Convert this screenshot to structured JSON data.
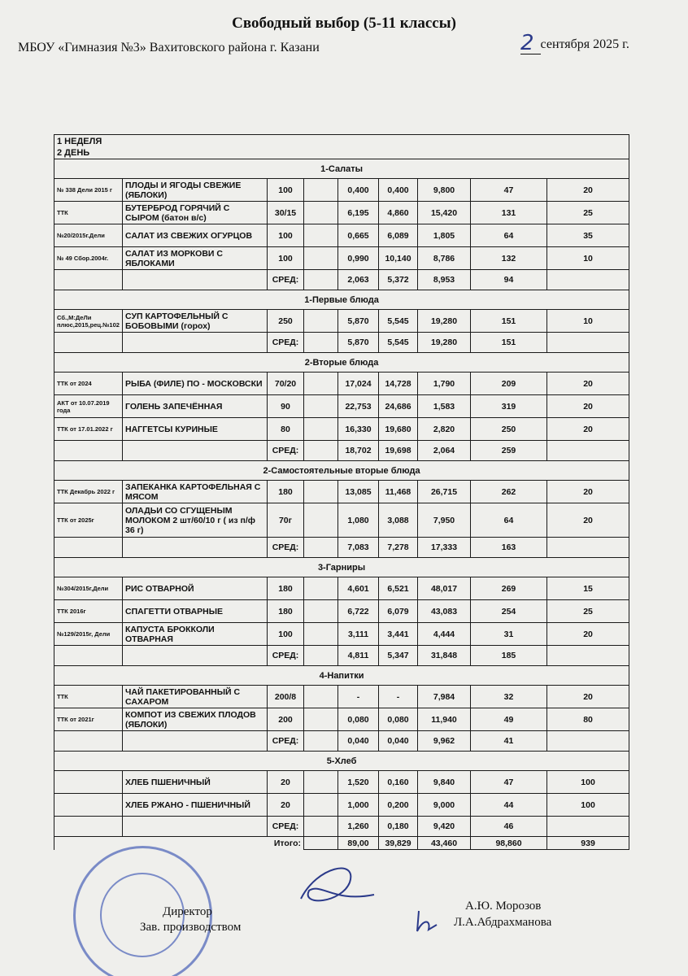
{
  "header": {
    "title": "Свободный выбор (5-11 классы)",
    "organization": "МБОУ «Гимназия №3» Вахитовского района г. Казани",
    "date_day": "2",
    "date_rest": "сентября 2025 г."
  },
  "table": {
    "week": "1 НЕДЕЛЯ",
    "day": "2 ДЕНЬ",
    "sections": [
      {
        "title": "1-Салаты",
        "rows": [
          [
            "№ 338 Дели 2015 г",
            "ПЛОДЫ И ЯГОДЫ СВЕЖИЕ (ЯБЛОКИ)",
            "100",
            "",
            "0,400",
            "0,400",
            "9,800",
            "47",
            "20"
          ],
          [
            "ТТК",
            "БУТЕРБРОД ГОРЯЧИЙ С СЫРОМ (батон в/с)",
            "30/15",
            "",
            "6,195",
            "4,860",
            "15,420",
            "131",
            "25"
          ],
          [
            "№20/2015г.Дели",
            "САЛАТ ИЗ СВЕЖИХ ОГУРЦОВ",
            "100",
            "",
            "0,665",
            "6,089",
            "1,805",
            "64",
            "35"
          ],
          [
            "№ 49 Сбор.2004г.",
            "САЛАТ ИЗ МОРКОВИ С ЯБЛОКАМИ",
            "100",
            "",
            "0,990",
            "10,140",
            "8,786",
            "132",
            "10"
          ]
        ],
        "avg": [
          "СРЕД:",
          "",
          "2,063",
          "5,372",
          "8,953",
          "94",
          ""
        ]
      },
      {
        "title": "1-Первые блюда",
        "rows": [
          [
            "Сб.,М:ДеЛи плюс,2015,рец.№102",
            "СУП КАРТОФЕЛЬНЫЙ С БОБОВЫМИ (горох)",
            "250",
            "",
            "5,870",
            "5,545",
            "19,280",
            "151",
            "10"
          ]
        ],
        "avg": [
          "СРЕД:",
          "",
          "5,870",
          "5,545",
          "19,280",
          "151",
          ""
        ]
      },
      {
        "title": "2-Вторые блюда",
        "rows": [
          [
            "ТТК от 2024",
            "РЫБА (ФИЛЕ) ПО - МОСКОВСКИ",
            "70/20",
            "",
            "17,024",
            "14,728",
            "1,790",
            "209",
            "20"
          ],
          [
            "АКТ от 10.07.2019 года",
            "ГОЛЕНЬ ЗАПЕЧЁННАЯ",
            "90",
            "",
            "22,753",
            "24,686",
            "1,583",
            "319",
            "20"
          ],
          [
            "ТТК от 17.01.2022 г",
            "НАГГЕТСЫ КУРИНЫЕ",
            "80",
            "",
            "16,330",
            "19,680",
            "2,820",
            "250",
            "20"
          ]
        ],
        "avg": [
          "СРЕД:",
          "",
          "18,702",
          "19,698",
          "2,064",
          "259",
          ""
        ]
      },
      {
        "title": "2-Самостоятельные вторые блюда",
        "rows": [
          [
            "ТТК Декабрь 2022 г",
            "ЗАПЕКАНКА КАРТОФЕЛЬНАЯ С МЯСОМ",
            "180",
            "",
            "13,085",
            "11,468",
            "26,715",
            "262",
            "20"
          ],
          [
            "ТТК от 2025г",
            "ОЛАДЬИ СО СГУЩЕНЫМ МОЛОКОМ 2 шт/60/10 г ( из п/ф 36 г)",
            "70г",
            "",
            "1,080",
            "3,088",
            "7,950",
            "64",
            "20"
          ]
        ],
        "avg": [
          "СРЕД:",
          "",
          "7,083",
          "7,278",
          "17,333",
          "163",
          ""
        ]
      },
      {
        "title": "3-Гарниры",
        "rows": [
          [
            "№304/2015г,Дели",
            "РИС ОТВАРНОЙ",
            "180",
            "",
            "4,601",
            "6,521",
            "48,017",
            "269",
            "15"
          ],
          [
            "ТТК 2016г",
            "СПАГЕТТИ ОТВАРНЫЕ",
            "180",
            "",
            "6,722",
            "6,079",
            "43,083",
            "254",
            "25"
          ],
          [
            "№129/2015г, Дели",
            "КАПУСТА БРОККОЛИ ОТВАРНАЯ",
            "100",
            "",
            "3,111",
            "3,441",
            "4,444",
            "31",
            "20"
          ]
        ],
        "avg": [
          "СРЕД:",
          "",
          "4,811",
          "5,347",
          "31,848",
          "185",
          ""
        ]
      },
      {
        "title": "4-Напитки",
        "rows": [
          [
            "ТТК",
            "ЧАЙ ПАКЕТИРОВАННЫЙ  С САХАРОМ",
            "200/8",
            "",
            "-",
            "-",
            "7,984",
            "32",
            "20"
          ],
          [
            "ТТК от 2021г",
            "КОМПОТ ИЗ СВЕЖИХ ПЛОДОВ (ЯБЛОКИ)",
            "200",
            "",
            "0,080",
            "0,080",
            "11,940",
            "49",
            "80"
          ]
        ],
        "avg": [
          "СРЕД:",
          "",
          "0,040",
          "0,040",
          "9,962",
          "41",
          ""
        ]
      },
      {
        "title": "5-Хлеб",
        "rows": [
          [
            "",
            "ХЛЕБ ПШЕНИЧНЫЙ",
            "20",
            "",
            "1,520",
            "0,160",
            "9,840",
            "47",
            "100"
          ],
          [
            "",
            "ХЛЕБ РЖАНО - ПШЕНИЧНЫЙ",
            "20",
            "",
            "1,000",
            "0,200",
            "9,000",
            "44",
            "100"
          ]
        ],
        "avg": [
          "СРЕД:",
          "",
          "1,260",
          "0,180",
          "9,420",
          "46",
          ""
        ]
      }
    ],
    "total": {
      "label": "Итого:",
      "values": [
        "89,00",
        "39,829",
        "43,460",
        "98,860",
        "939"
      ]
    }
  },
  "signatures": {
    "director_title": "Директор",
    "director_name": "А.Ю. Морозов",
    "manager_title": "Зав. производством",
    "manager_name": "Л.А.Абдрахманова"
  },
  "stamp_text": "Муниципальное бюджетное общеобразовательное учреждение «Гимназия №3» Вахитовского района г.Казани"
}
